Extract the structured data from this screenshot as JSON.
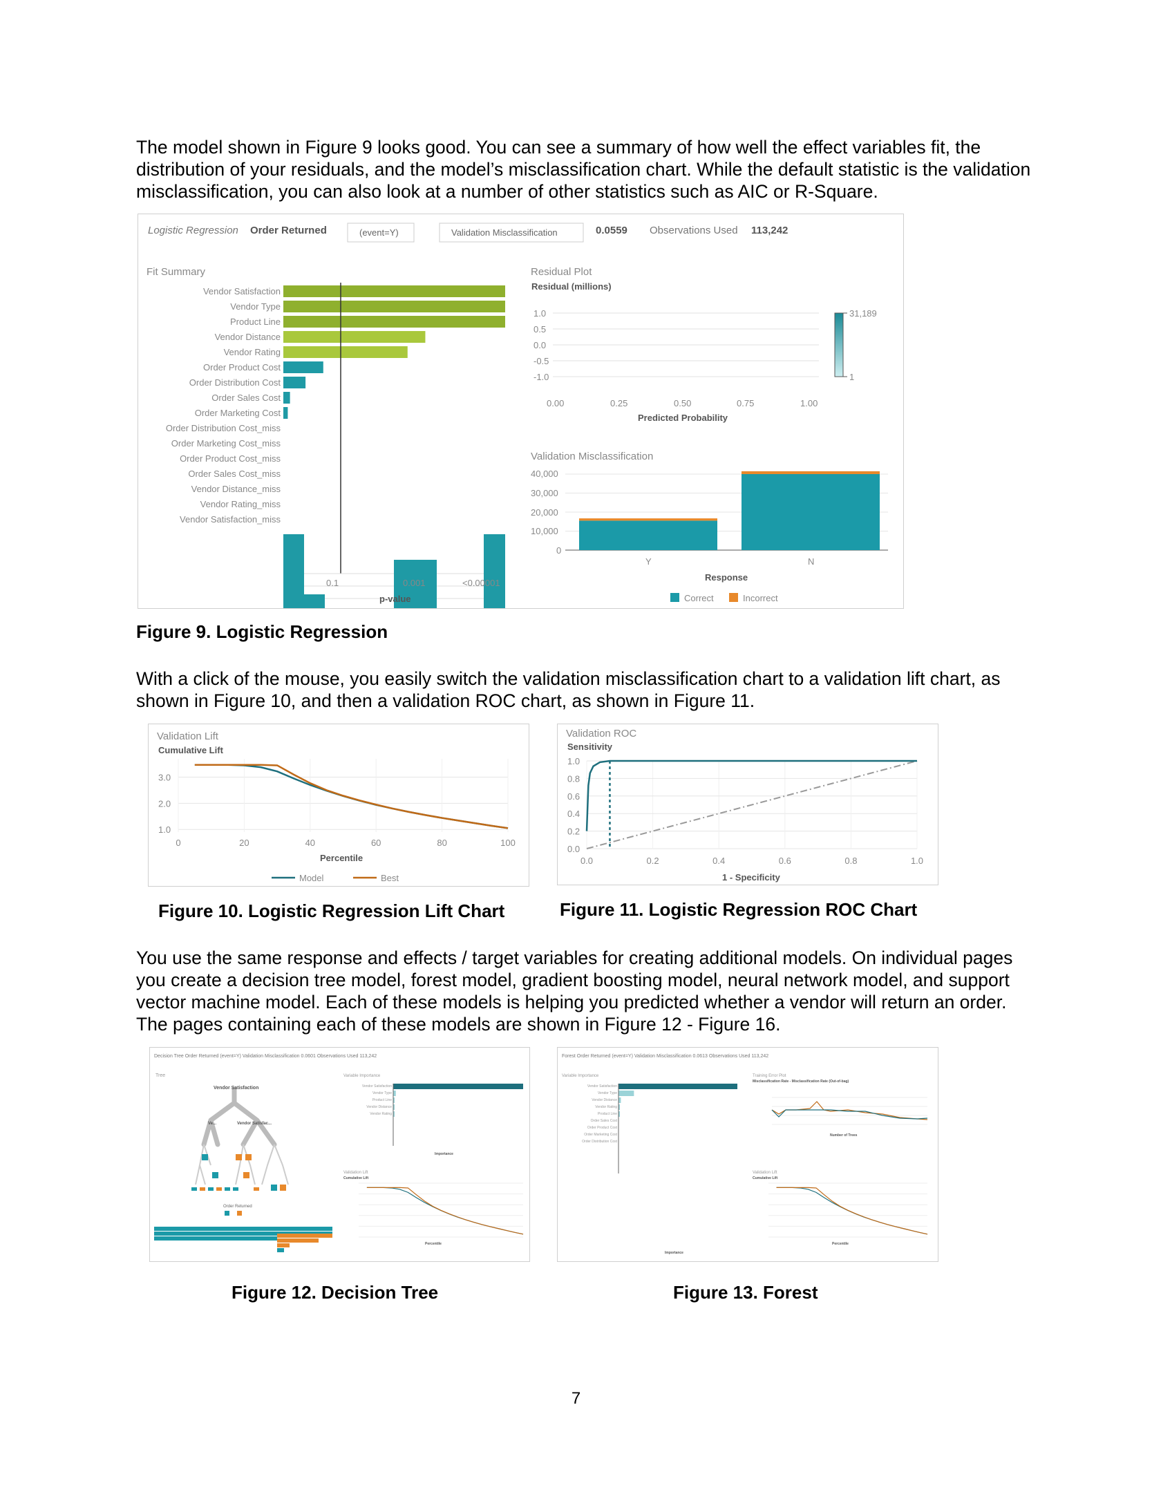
{
  "paragraphs": {
    "p1": "The model shown in Figure 9 looks good. You can see a summary of how well the effect variables fit, the distribution of your residuals, and the model’s misclassification chart.  While the default statistic is the validation misclassification, you can also look at a number of other statistics such as AIC or R-Square.",
    "p2": "With a click of the mouse, you easily switch the validation misclassification chart to a validation lift chart, as shown in Figure 10, and then a validation ROC chart, as shown in Figure 11.",
    "p3": "You use the same response and effects / target variables for creating additional models.  On individual pages you create a decision tree model, forest model, gradient boosting model, neural network model, and support vector machine model.  Each of these models is helping you predicted whether a vendor will return an order.  The pages containing each of these models are shown in Figure 12 - Figure 16."
  },
  "captions": {
    "fig9": "Figure 9. Logistic Regression",
    "fig10": "Figure 10. Logistic Regression Lift Chart",
    "fig11": "Figure 11. Logistic Regression ROC Chart",
    "fig12": "Figure 12. Decision Tree",
    "fig13": "Figure 13. Forest"
  },
  "page_number": "7",
  "fig9": {
    "header": {
      "model_type": "Logistic Regression",
      "response": "Order Returned",
      "event": "(event=Y)",
      "statistic": "Validation Misclassification",
      "statistic_value": "0.0559",
      "obs_label": "Observations Used",
      "obs_value": "113,242"
    },
    "fit_summary": {
      "title": "Fit Summary",
      "xlabel": "p-value",
      "ticks": [
        "0.1",
        "0.001",
        "<0.00001"
      ],
      "bars": [
        {
          "label": "Vendor Satisfaction",
          "strength": 1.0,
          "color": "#8fb02e"
        },
        {
          "label": "Vendor Type",
          "strength": 1.0,
          "color": "#8fb02e"
        },
        {
          "label": "Product Line",
          "strength": 1.0,
          "color": "#8fb02e"
        },
        {
          "label": "Vendor Distance",
          "strength": 0.64,
          "color": "#a9c83c"
        },
        {
          "label": "Vendor Rating",
          "strength": 0.56,
          "color": "#a9c83c"
        },
        {
          "label": "Order Product Cost",
          "strength": 0.18,
          "color": "#1f9aa5"
        },
        {
          "label": "Order Distribution Cost",
          "strength": 0.1,
          "color": "#1f9aa5"
        },
        {
          "label": "Order Sales Cost",
          "strength": 0.03,
          "color": "#1f9aa5"
        },
        {
          "label": "Order Marketing Cost",
          "strength": 0.02,
          "color": "#1f9aa5"
        },
        {
          "label": "Order Distribution Cost_miss",
          "strength": 0,
          "color": "#1f9aa5"
        },
        {
          "label": "Order Marketing Cost_miss",
          "strength": 0,
          "color": "#1f9aa5"
        },
        {
          "label": "Order Product Cost_miss",
          "strength": 0,
          "color": "#1f9aa5"
        },
        {
          "label": "Order Sales Cost_miss",
          "strength": 0,
          "color": "#1f9aa5"
        },
        {
          "label": "Vendor Distance_miss",
          "strength": 0,
          "color": "#1f9aa5"
        },
        {
          "label": "Vendor Rating_miss",
          "strength": 0,
          "color": "#1f9aa5"
        },
        {
          "label": "Vendor Satisfaction_miss",
          "strength": 0,
          "color": "#1f9aa5"
        }
      ]
    },
    "residual": {
      "title": "Residual Plot",
      "ylabel": "Residual (millions)",
      "yticks": [
        "1.0",
        "0.5",
        "0.0",
        "-0.5",
        "-1.0"
      ],
      "xticks": [
        "0.00",
        "0.25",
        "0.50",
        "0.75",
        "1.00"
      ],
      "xlabel": "Predicted Probability",
      "legend_max": "31,189",
      "legend_min": "1"
    },
    "misclass": {
      "title": "Validation Misclassification",
      "yticks": [
        "40,000",
        "30,000",
        "20,000",
        "10,000",
        "0"
      ],
      "xlabel": "Response",
      "legend_correct": "Correct",
      "legend_incorrect": "Incorrect",
      "colors": {
        "correct": "#1b9aa8",
        "incorrect": "#e8892b"
      }
    }
  },
  "chart_data": [
    {
      "type": "bar",
      "title": "Validation Misclassification",
      "xlabel": "Response",
      "ylabel": "",
      "categories": [
        "Y",
        "N"
      ],
      "series": [
        {
          "name": "Correct",
          "values": [
            15500,
            40000
          ]
        },
        {
          "name": "Incorrect",
          "values": [
            1200,
            1500
          ]
        }
      ],
      "ylim": [
        0,
        42000
      ]
    },
    {
      "type": "line",
      "title": "Validation Lift",
      "ylabel": "Cumulative Lift",
      "xlabel": "Percentile",
      "x": [
        5,
        10,
        15,
        20,
        25,
        30,
        35,
        40,
        45,
        50,
        55,
        60,
        65,
        70,
        75,
        80,
        85,
        90,
        95,
        100
      ],
      "series": [
        {
          "name": "Model",
          "values": [
            3.47,
            3.47,
            3.47,
            3.45,
            3.38,
            3.22,
            2.95,
            2.7,
            2.48,
            2.28,
            2.1,
            1.94,
            1.8,
            1.67,
            1.55,
            1.44,
            1.34,
            1.24,
            1.14,
            1.05
          ]
        },
        {
          "name": "Best",
          "values": [
            3.47,
            3.47,
            3.47,
            3.47,
            3.47,
            3.45,
            3.1,
            2.77,
            2.5,
            2.29,
            2.11,
            1.95,
            1.8,
            1.67,
            1.55,
            1.44,
            1.34,
            1.24,
            1.14,
            1.05
          ]
        }
      ],
      "xticks": [
        "0",
        "20",
        "40",
        "60",
        "80",
        "100"
      ],
      "yticks": [
        "3.0",
        "2.0",
        "1.0"
      ],
      "xlim": [
        0,
        100
      ],
      "ylim": [
        0.9,
        3.7
      ]
    },
    {
      "type": "line",
      "title": "Validation ROC",
      "ylabel": "Sensitivity",
      "xlabel": "1 - Specificity",
      "x": [
        0,
        0.005,
        0.01,
        0.02,
        0.04,
        0.07,
        0.1,
        0.2,
        0.4,
        0.6,
        0.8,
        1.0
      ],
      "series": [
        {
          "name": "Model",
          "values": [
            0.2,
            0.72,
            0.86,
            0.94,
            0.985,
            1.0,
            1.0,
            1.0,
            1.0,
            1.0,
            1.0,
            1.0
          ]
        }
      ],
      "cutoff": {
        "x": 0.07,
        "y": 1.0
      },
      "xticks": [
        "0.0",
        "0.2",
        "0.4",
        "0.6",
        "0.8",
        "1.0"
      ],
      "yticks": [
        "1.0",
        "0.8",
        "0.6",
        "0.4",
        "0.2",
        "0.0"
      ],
      "xlim": [
        0,
        1
      ],
      "ylim": [
        0,
        1
      ]
    }
  ],
  "fig10": {
    "title": "Validation Lift",
    "legend_model": "Model",
    "legend_best": "Best",
    "colors": {
      "model": "#1e6f7d",
      "best": "#c06a17"
    }
  },
  "fig11": {
    "title": "Validation ROC",
    "color": "#1e6f7d"
  },
  "fig12": {
    "header": "Decision Tree  Order Returned   (event=Y)   Validation Misclassification  0.0601  Observations Used  113,242",
    "tree_title": "Tree",
    "root_label": "Vendor Satisfaction",
    "node_y": "Ve...",
    "node_sat": "Vendor Satisfac...",
    "leaf_label": "Order Returned",
    "vi_title": "Variable Importance",
    "vi_labels": [
      "Vendor Satisfaction",
      "Vendor Type",
      "Product Line",
      "Vendor Distance",
      "Vendor Rating"
    ],
    "vi_values": [
      1.0,
      0.02,
      0.01,
      0.01,
      0.01
    ],
    "vi_xlabel": "Importance",
    "lift_title": "Validation Lift",
    "lift_ylabel": "Cumulative Lift",
    "lift_xlabel": "Percentile"
  },
  "fig13": {
    "header": "Forest  Order Returned   (event=Y)   Validation Misclassification  0.0613  Observations Used  113,242",
    "vi_title": "Variable Importance",
    "vi_labels": [
      "Vendor Satisfaction",
      "Vendor Type",
      "Vendor Distance",
      "Vendor Rating",
      "Product Line",
      "Order Sales Cost",
      "Order Product Cost",
      "Order Marketing Cost",
      "Order Distribution Cost"
    ],
    "vi_values": [
      1.0,
      0.13,
      0.02,
      0.01,
      0.01,
      0.0,
      0.0,
      0.0,
      0.0
    ],
    "vi_xlabel": "Importance",
    "err_title": "Training Error Plot",
    "err_ylabel": "Misclassification Rate - Misclassification Rate (Out-of-bag)",
    "err_xlabel": "Number of Trees",
    "lift_title": "Validation Lift",
    "lift_ylabel": "Cumulative Lift",
    "lift_xlabel": "Percentile"
  }
}
